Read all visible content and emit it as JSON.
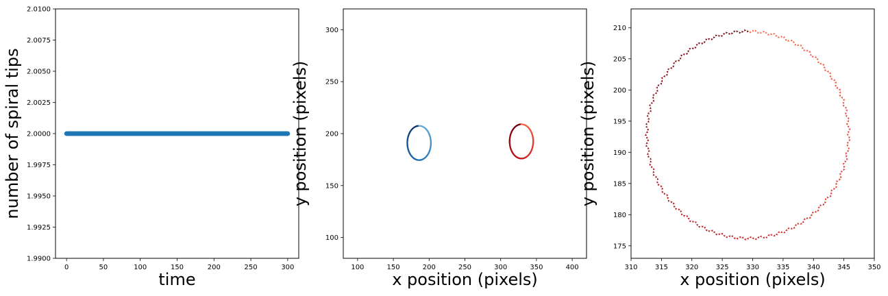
{
  "chart_data": [
    {
      "type": "scatter",
      "xlabel": "time",
      "ylabel": "number of spiral tips",
      "xlim": [
        -15,
        315
      ],
      "ylim": [
        1.99,
        2.01
      ],
      "xticks": [
        "0",
        "50",
        "100",
        "150",
        "200",
        "250",
        "300"
      ],
      "yticks": [
        "1.9900",
        "1.9925",
        "1.9950",
        "1.9975",
        "2.0000",
        "2.0025",
        "2.0050",
        "2.0075",
        "2.0100"
      ],
      "series": [
        {
          "x_start": 0,
          "x_end": 300,
          "x_step": 1,
          "y": 2.0,
          "color": "#1f77b4"
        }
      ]
    },
    {
      "type": "line",
      "xlabel": "x position (pixels)",
      "ylabel": "y position (pixels)",
      "xlim": [
        80,
        420
      ],
      "ylim": [
        80,
        320
      ],
      "xticks": [
        "100",
        "150",
        "200",
        "250",
        "300",
        "350",
        "400"
      ],
      "yticks": [
        "100",
        "150",
        "200",
        "250",
        "300"
      ],
      "series": [
        {
          "shape": "ellipse",
          "center": [
            186,
            191
          ],
          "radius_x": 16.5,
          "radius_y": 16.5,
          "colormap": "blues"
        },
        {
          "shape": "ellipse",
          "center": [
            329,
            192.5
          ],
          "radius_x": 16.5,
          "radius_y": 16.5,
          "colormap": "reds"
        }
      ]
    },
    {
      "type": "scatter",
      "xlabel": "x position (pixels)",
      "ylabel": "y position (pixels)",
      "xlim": [
        310,
        350
      ],
      "ylim": [
        173,
        213
      ],
      "xticks": [
        "310",
        "315",
        "320",
        "325",
        "330",
        "335",
        "340",
        "345",
        "350"
      ],
      "yticks": [
        "175",
        "180",
        "185",
        "190",
        "195",
        "200",
        "205",
        "210"
      ],
      "series": [
        {
          "shape": "circle",
          "center": [
            329.2,
            192.8
          ],
          "radius_x": 16.6,
          "radius_y": 16.6,
          "colormap": "reds",
          "marker": "triangle"
        }
      ]
    }
  ]
}
